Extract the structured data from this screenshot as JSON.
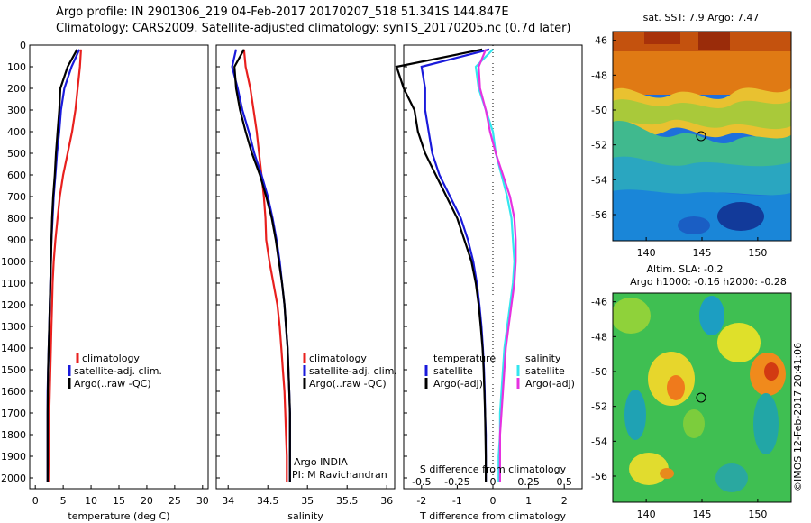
{
  "header": {
    "line1": "Argo profile: IN 2901306_219 04-Feb-2017 20170207_518 51.341S 144.847E",
    "line2": "Climatology: CARS2009. Satellite-adjusted climatology: synTS_20170205.nc (0.7d later)"
  },
  "depth_ticks": [
    0,
    100,
    200,
    300,
    400,
    500,
    600,
    700,
    800,
    900,
    1000,
    1100,
    1200,
    1300,
    1400,
    1500,
    1600,
    1700,
    1800,
    1900,
    2000
  ],
  "colors": {
    "climatology": "#e8201e",
    "satellite": "#1a1adb",
    "argo": "#000000",
    "satellite_s": "#33e6ef",
    "argo_s": "#e632e0"
  },
  "panels": {
    "temperature": {
      "xlabel": "temperature (deg C)",
      "xticks": [
        "0",
        "5",
        "10",
        "15",
        "20",
        "25",
        "30"
      ],
      "legend": [
        "climatology",
        "satellite-adj. clim.",
        "Argo(..raw -QC)"
      ]
    },
    "salinity": {
      "xlabel": "salinity",
      "xticks": [
        "34",
        "34.5",
        "35",
        "35.5",
        "36"
      ],
      "legend": [
        "climatology",
        "satellite-adj. clim.",
        "Argo(..raw -QC)"
      ],
      "note1": "Argo INDIA",
      "note2": "PI: M Ravichandran"
    },
    "difference": {
      "xlabel": "T difference from climatology",
      "top_label": "S difference from climatology",
      "s_ticks": [
        "-0.5",
        "-0.25",
        "0",
        "0.25",
        "0.5"
      ],
      "t_ticks": [
        "-2",
        "-1",
        "0",
        "1",
        "2"
      ],
      "legend_t_title": "temperature",
      "legend_s_title": "salinity",
      "legend_t": [
        "satellite",
        "Argo(-adj)"
      ],
      "legend_s": [
        "satellite",
        "Argo(-adj)"
      ]
    },
    "sst_map": {
      "title": "sat. SST: 7.9 Argo: 7.47",
      "yticks": [
        "-46",
        "-48",
        "-50",
        "-52",
        "-54",
        "-56"
      ],
      "xticks": [
        "140",
        "145",
        "150"
      ]
    },
    "sla_map": {
      "title1": "Altim. SLA: -0.2",
      "title2": "Argo h1000: -0.16 h2000: -0.28",
      "yticks": [
        "-46",
        "-48",
        "-50",
        "-52",
        "-54",
        "-56"
      ],
      "xticks": [
        "140",
        "145",
        "150"
      ]
    },
    "credit": "©IMOS 12-Feb-2017 20:41:06"
  },
  "chart_data": [
    {
      "type": "line",
      "panel": "temperature",
      "xlabel": "temperature (deg C)",
      "ylabel": "",
      "xlim": [
        -1,
        31
      ],
      "ylim": [
        2050,
        0
      ],
      "y_reversed": true,
      "series": [
        {
          "name": "climatology",
          "color": "#e8201e",
          "x": [
            8.2,
            8.0,
            7.6,
            7.2,
            6.6,
            5.8,
            5.0,
            4.4,
            4.0,
            3.6,
            3.3,
            3.1,
            3.0,
            2.9,
            2.8,
            2.7,
            2.6,
            2.5,
            2.45,
            2.4,
            2.35
          ],
          "y": [
            20,
            100,
            200,
            300,
            400,
            500,
            600,
            700,
            800,
            900,
            1000,
            1100,
            1200,
            1300,
            1400,
            1500,
            1600,
            1700,
            1800,
            1900,
            2020
          ]
        },
        {
          "name": "satellite-adj. clim.",
          "color": "#1a1adb",
          "x": [
            7.9,
            6.5,
            5.2,
            4.6,
            4.3,
            3.9,
            3.6,
            3.3,
            3.1,
            2.9,
            2.8,
            2.7,
            2.6,
            2.5,
            2.4,
            2.3,
            2.2,
            2.2,
            2.2,
            2.2,
            2.2
          ],
          "y": [
            20,
            100,
            200,
            300,
            400,
            500,
            600,
            700,
            800,
            900,
            1000,
            1100,
            1200,
            1300,
            1400,
            1500,
            1600,
            1700,
            1800,
            1900,
            2020
          ]
        },
        {
          "name": "Argo(..raw -QC)",
          "color": "#000000",
          "x": [
            7.5,
            5.8,
            4.5,
            4.3,
            4.0,
            3.7,
            3.5,
            3.2,
            3.0,
            2.9,
            2.8,
            2.7,
            2.6,
            2.5,
            2.4,
            2.3,
            2.25,
            2.2,
            2.2,
            2.2,
            2.2
          ],
          "y": [
            20,
            100,
            200,
            300,
            400,
            500,
            600,
            700,
            800,
            900,
            1000,
            1100,
            1200,
            1300,
            1400,
            1500,
            1600,
            1700,
            1800,
            1900,
            2020
          ]
        }
      ]
    },
    {
      "type": "line",
      "panel": "salinity",
      "xlabel": "salinity",
      "ylabel": "",
      "xlim": [
        33.85,
        36.1
      ],
      "ylim": [
        2050,
        0
      ],
      "y_reversed": true,
      "series": [
        {
          "name": "climatology",
          "color": "#e8201e",
          "x": [
            34.2,
            34.22,
            34.28,
            34.32,
            34.36,
            34.39,
            34.42,
            34.45,
            34.47,
            34.48,
            34.52,
            34.57,
            34.62,
            34.65,
            34.67,
            34.69,
            34.71,
            34.72,
            34.73,
            34.74,
            34.74
          ],
          "y": [
            20,
            100,
            200,
            300,
            400,
            500,
            600,
            700,
            800,
            900,
            1000,
            1100,
            1200,
            1300,
            1400,
            1500,
            1600,
            1700,
            1800,
            1900,
            2020
          ]
        },
        {
          "name": "satellite-adj. clim.",
          "color": "#1a1adb",
          "x": [
            34.1,
            34.05,
            34.12,
            34.18,
            34.26,
            34.33,
            34.42,
            34.5,
            34.56,
            34.61,
            34.65,
            34.68,
            34.71,
            34.73,
            34.75,
            34.76,
            34.77,
            34.78,
            34.78,
            34.78,
            34.78
          ],
          "y": [
            20,
            100,
            200,
            300,
            400,
            500,
            600,
            700,
            800,
            900,
            1000,
            1100,
            1200,
            1300,
            1400,
            1500,
            1600,
            1700,
            1800,
            1900,
            2020
          ]
        },
        {
          "name": "Argo(..raw -QC)",
          "color": "#000000",
          "x": [
            34.2,
            34.08,
            34.1,
            34.15,
            34.22,
            34.3,
            34.4,
            34.48,
            34.55,
            34.6,
            34.64,
            34.68,
            34.71,
            34.73,
            34.75,
            34.76,
            34.77,
            34.78,
            34.78,
            34.78,
            34.78
          ],
          "y": [
            20,
            100,
            200,
            300,
            400,
            500,
            600,
            700,
            800,
            900,
            1000,
            1100,
            1200,
            1300,
            1400,
            1500,
            1600,
            1700,
            1800,
            1900,
            2020
          ]
        }
      ]
    },
    {
      "type": "line",
      "panel": "difference",
      "xlabel": "T difference from climatology",
      "x2label": "S difference from climatology",
      "xlim": [
        -2.5,
        2.5
      ],
      "x2lim": [
        -0.625,
        0.625
      ],
      "ylim": [
        2050,
        0
      ],
      "y_reversed": true,
      "series": [
        {
          "name": "temperature satellite",
          "axis": "T",
          "color": "#1a1adb",
          "x": [
            -0.1,
            -2.0,
            -1.9,
            -1.9,
            -1.8,
            -1.7,
            -1.5,
            -1.2,
            -0.9,
            -0.7,
            -0.55,
            -0.45,
            -0.38,
            -0.32,
            -0.28,
            -0.25,
            -0.23,
            -0.22,
            -0.2,
            -0.2,
            -0.2
          ],
          "y": [
            20,
            100,
            200,
            300,
            400,
            500,
            600,
            700,
            800,
            900,
            1000,
            1100,
            1200,
            1300,
            1400,
            1500,
            1600,
            1700,
            1800,
            1900,
            2020
          ]
        },
        {
          "name": "temperature Argo(-adj)",
          "axis": "T",
          "color": "#000000",
          "x": [
            -0.3,
            -2.7,
            -2.5,
            -2.2,
            -2.1,
            -1.9,
            -1.6,
            -1.3,
            -1.0,
            -0.8,
            -0.6,
            -0.48,
            -0.4,
            -0.34,
            -0.29,
            -0.26,
            -0.24,
            -0.22,
            -0.21,
            -0.2,
            -0.2
          ],
          "y": [
            20,
            100,
            200,
            300,
            400,
            500,
            600,
            700,
            800,
            900,
            1000,
            1100,
            1200,
            1300,
            1400,
            1500,
            1600,
            1700,
            1800,
            1900,
            2020
          ]
        },
        {
          "name": "salinity satellite",
          "axis": "S",
          "color": "#33e6ef",
          "x": [
            0.0,
            -0.12,
            -0.1,
            -0.05,
            0.0,
            0.02,
            0.06,
            0.1,
            0.13,
            0.14,
            0.15,
            0.14,
            0.12,
            0.1,
            0.08,
            0.07,
            0.06,
            0.05,
            0.05,
            0.04,
            0.04
          ],
          "y": [
            20,
            100,
            200,
            300,
            400,
            500,
            600,
            700,
            800,
            900,
            1000,
            1100,
            1200,
            1300,
            1400,
            1500,
            1600,
            1700,
            1800,
            1900,
            2020
          ]
        },
        {
          "name": "salinity Argo(-adj)",
          "axis": "S",
          "color": "#e632e0",
          "x": [
            -0.05,
            -0.1,
            -0.09,
            -0.05,
            -0.02,
            0.02,
            0.07,
            0.12,
            0.15,
            0.16,
            0.16,
            0.15,
            0.13,
            0.11,
            0.09,
            0.08,
            0.07,
            0.06,
            0.05,
            0.05,
            0.05
          ],
          "y": [
            20,
            100,
            200,
            300,
            400,
            500,
            600,
            700,
            800,
            900,
            1000,
            1100,
            1200,
            1300,
            1400,
            1500,
            1600,
            1700,
            1800,
            1900,
            2020
          ]
        }
      ]
    },
    {
      "type": "heatmap",
      "panel": "sst_map",
      "title": "sat. SST: 7.9 Argo: 7.47",
      "xlim": [
        137,
        153
      ],
      "ylim": [
        -57.5,
        -45.5
      ],
      "marker": {
        "lon": 144.847,
        "lat": -51.341
      }
    },
    {
      "type": "heatmap",
      "panel": "sla_map",
      "title": "Altim. SLA: -0.2",
      "xlim": [
        137,
        153
      ],
      "ylim": [
        -57.5,
        -45.5
      ],
      "marker": {
        "lon": 144.847,
        "lat": -51.341
      }
    }
  ]
}
